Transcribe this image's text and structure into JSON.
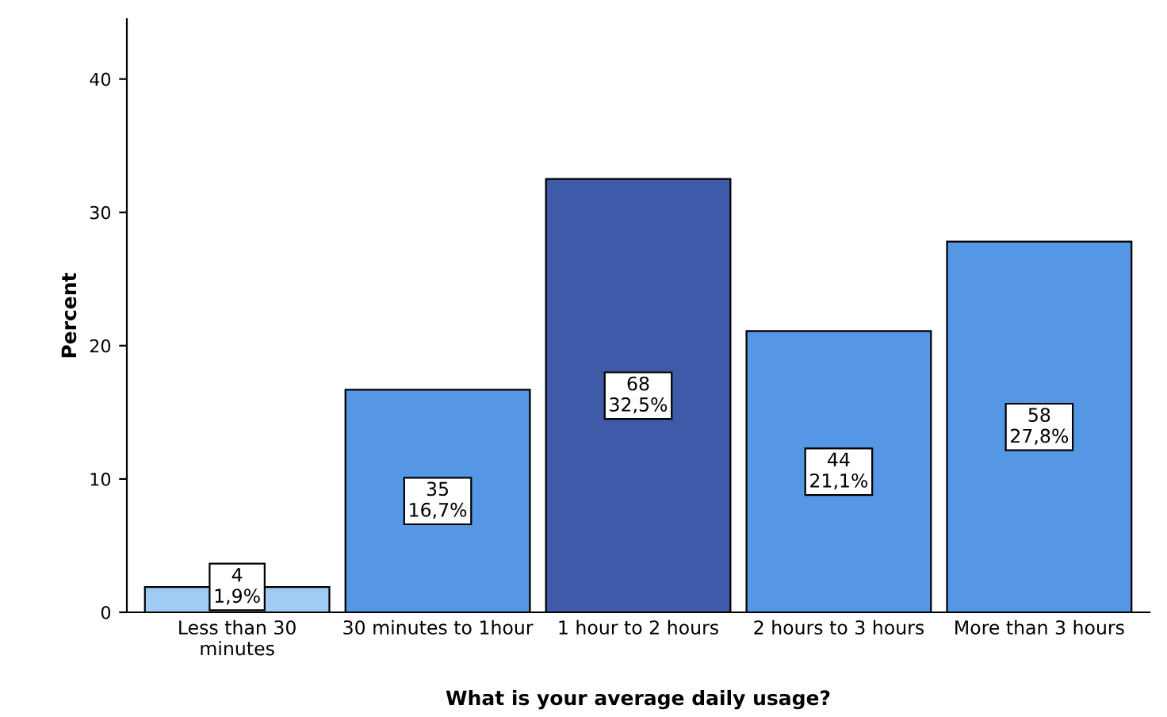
{
  "chart_data": {
    "type": "bar",
    "xlabel": "What is your average daily usage?",
    "ylabel": "Percent",
    "categories": [
      "Less than 30\nminutes",
      "30 minutes to 1hour",
      "1 hour to 2 hours",
      "2 hours to 3 hours",
      "More than 3 hours"
    ],
    "values": [
      1.9,
      16.7,
      32.5,
      21.1,
      27.8
    ],
    "colors": [
      "#9fcbf5",
      "#5596e5",
      "#3e5aa9",
      "#5596e5",
      "#5596e5"
    ],
    "value_labels": [
      "4\n1,9%",
      "35\n16,7%",
      "68\n32,5%",
      "44\n21,1%",
      "58\n27,8%"
    ],
    "ylim": [
      0,
      44.5
    ],
    "yticks": [
      0,
      10,
      20,
      30,
      40
    ],
    "grid": false
  }
}
